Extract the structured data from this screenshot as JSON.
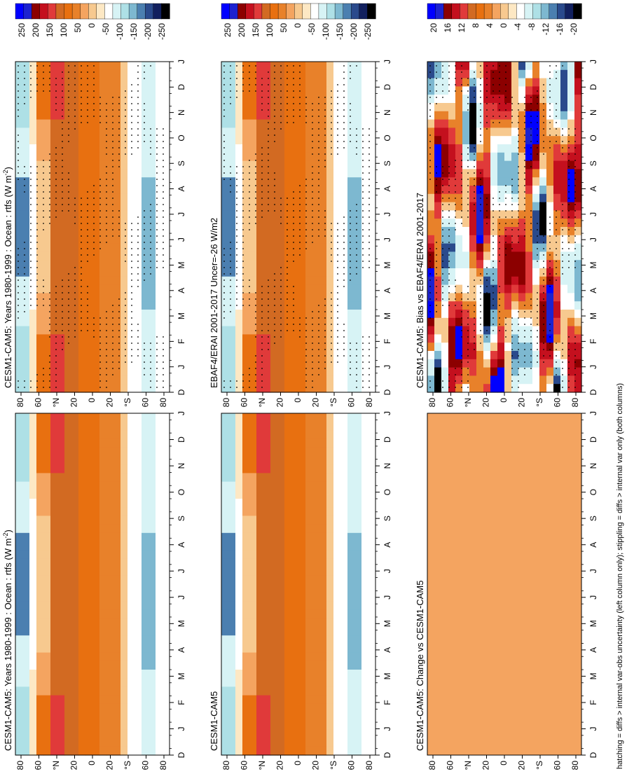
{
  "chart_data": {
    "type": "heatmap",
    "orientation": "rotated-90-clockwise",
    "footnote": "hatching = diffs > internal var-obs uncertainty (left column only); stippling = diffs > internal var only (both columns)",
    "month_labels": [
      "D",
      "J",
      "F",
      "M",
      "A",
      "M",
      "J",
      "J",
      "A",
      "S",
      "O",
      "N",
      "D",
      "J"
    ],
    "lat_labels": [
      "80",
      "60",
      "°N",
      "20",
      "0",
      "20",
      "°S",
      "60",
      "80"
    ],
    "colorbars": [
      {
        "levels": [
          "250",
          "200",
          "150",
          "100",
          "50",
          "0",
          "-50",
          "-100",
          "-150",
          "-200",
          "-250"
        ]
      },
      {
        "levels": [
          "20",
          "16",
          "12",
          "8",
          "4",
          "0",
          "-4",
          "-8",
          "-12",
          "-16",
          "-20"
        ]
      }
    ],
    "panels": [
      {
        "id": "p1",
        "title": "CESM1-CAM5: Years 1980-1999 : Ocean : rtfs (W m",
        "title_sup": "-2",
        "title_end": ")",
        "colorbar": 0,
        "pattern": "clim",
        "stipple": true
      },
      {
        "id": "p2",
        "title": "CESM1-CAM5: Years 1980-1999 : Ocean : rtfs (W m",
        "title_sup": "-2",
        "title_end": ")",
        "colorbar": 0,
        "pattern": "clim",
        "stipple": false
      },
      {
        "id": "p3",
        "title": "EBAF4/ERAI 2001-2017 Uncer=-26 W/m2",
        "colorbar": 0,
        "pattern": "clim",
        "stipple": true
      },
      {
        "id": "p4",
        "title": "CESM1-CAM5",
        "colorbar": 0,
        "pattern": "clim",
        "stipple": false
      },
      {
        "id": "p5",
        "title": "CESM1-CAM5: Bias vs EBAF4/ERAI 2001-2017",
        "colorbar": 1,
        "pattern": "bias",
        "stipple": true
      },
      {
        "id": "p6",
        "title": "CESM1-CAM5: Change vs CESM1-CAM5",
        "colorbar": 1,
        "pattern": "flat",
        "stipple": false
      }
    ],
    "colors": [
      "#000000",
      "#12205e",
      "#2a4a8c",
      "#4b7fb0",
      "#7db8d0",
      "#aee0e6",
      "#d7f3f5",
      "#ffffff",
      "#fde8c4",
      "#f7c98f",
      "#f4a460",
      "#e8812a",
      "#e87010",
      "#d26a22",
      "#e03a3a",
      "#c4101e",
      "#8c0000",
      "#1d22d0",
      "#0000ff"
    ]
  }
}
